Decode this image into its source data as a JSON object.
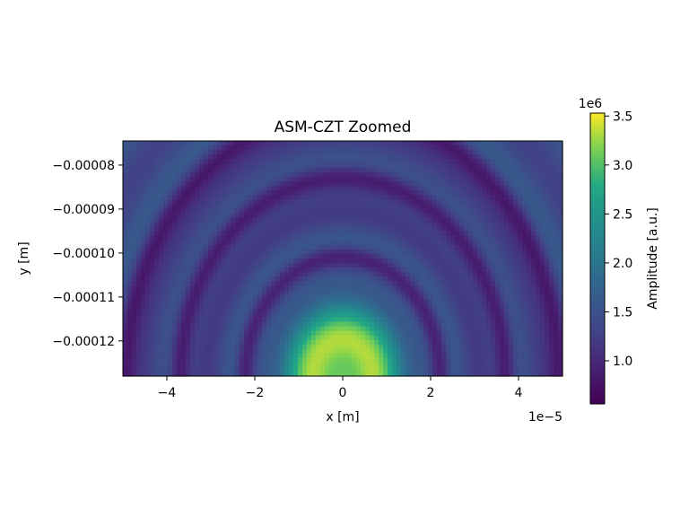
{
  "chart_data": {
    "type": "heatmap",
    "title": "ASM-CZT Zoomed",
    "xlabel": "x [m]",
    "ylabel": "y [m]",
    "x_range": [
      -5e-05,
      5e-05
    ],
    "y_range": [
      -0.000128,
      -7.45e-05
    ],
    "x_offset_label": "1e−5",
    "x_ticks": [
      {
        "value": -4e-05,
        "label": "−4"
      },
      {
        "value": -2e-05,
        "label": "−2"
      },
      {
        "value": 0,
        "label": "0"
      },
      {
        "value": 2e-05,
        "label": "2"
      },
      {
        "value": 4e-05,
        "label": "4"
      }
    ],
    "y_ticks": [
      {
        "value": -8e-05,
        "label": "−0.00008"
      },
      {
        "value": -9e-05,
        "label": "−0.00009"
      },
      {
        "value": -0.0001,
        "label": "−0.00010"
      },
      {
        "value": -0.00011,
        "label": "−0.00011"
      },
      {
        "value": -0.00012,
        "label": "−0.00012"
      }
    ],
    "colorbar": {
      "label": "Amplitude [a.u.]",
      "offset_label": "1e6",
      "colormap": "viridis",
      "range": [
        560000,
        3530000
      ],
      "ticks": [
        {
          "value": 1000000,
          "label": "1.0"
        },
        {
          "value": 1500000,
          "label": "1.5"
        },
        {
          "value": 2000000,
          "label": "2.0"
        },
        {
          "value": 2500000,
          "label": "2.5"
        },
        {
          "value": 3000000,
          "label": "3.0"
        },
        {
          "value": 3500000,
          "label": "3.5"
        }
      ]
    },
    "grid": false,
    "field_model": {
      "peak_center": [
        0,
        -0.000128
      ],
      "peak_amplitude": 3500000,
      "floor_amplitude": 1450000,
      "ring_amplitude": 900000,
      "min_amplitude": 600000,
      "dark_ring_radii": [
        2.7e-05,
        4.5e-05,
        6e-05
      ],
      "ellipse_x_scale": 0.82
    }
  }
}
